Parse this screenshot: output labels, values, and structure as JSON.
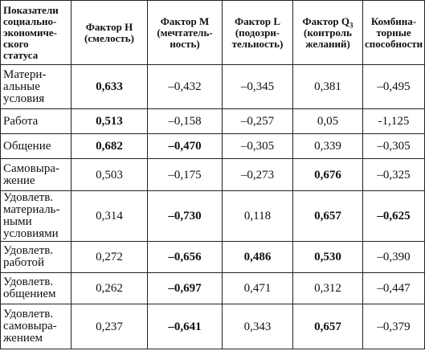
{
  "table": {
    "headers": [
      [
        "Показатели",
        "социально-",
        "экономиче-",
        "ского",
        "статуса"
      ],
      [
        "Фактор H",
        "(смелость)"
      ],
      [
        "Фактор M",
        "(мечтатель-",
        "ность)"
      ],
      [
        "Фактор L",
        "(подозри-",
        "тельность)"
      ],
      [
        "Фактор Q",
        "(контроль",
        "желаний)"
      ],
      [
        "Комбина-",
        "торные",
        "способности"
      ]
    ],
    "factor_q_subscript": "3",
    "rows": [
      {
        "label": [
          "Матери-",
          "альные",
          "условия"
        ],
        "cells": [
          "0,633",
          "–0,432",
          "–0,345",
          "0,381",
          "–0,495"
        ]
      },
      {
        "label": [
          "Работа"
        ],
        "cells": [
          "0,513",
          "–0,158",
          "–0,257",
          "0,05",
          "-1,125"
        ]
      },
      {
        "label": [
          "Общение"
        ],
        "cells": [
          "0,682",
          "–0,470",
          "–0,305",
          "0,339",
          "–0,305"
        ]
      },
      {
        "label": [
          "Самовыра-",
          "жение"
        ],
        "cells": [
          "0,503",
          "–0,175",
          "–0,273",
          "0,676",
          "–0,325"
        ]
      },
      {
        "label": [
          "Удовлетв.",
          "материаль-",
          "ными",
          "условиями"
        ],
        "cells": [
          "0,314",
          "–0,730",
          "0,118",
          "0,657",
          "–0,625"
        ]
      },
      {
        "label": [
          "Удовлетв.",
          "работой"
        ],
        "cells": [
          "0,272",
          "–0,656",
          "0,486",
          "0,530",
          "–0,390"
        ]
      },
      {
        "label": [
          "Удовлетв.",
          "общением"
        ],
        "cells": [
          "0,262",
          "–0,697",
          "0,471",
          "0,312",
          "–0,447"
        ]
      },
      {
        "label": [
          "Удовлетв.",
          "самовыра-",
          "жением"
        ],
        "cells": [
          "0,237",
          "–0,641",
          "0,343",
          "0,657",
          "–0,379"
        ]
      }
    ],
    "bold_cells": [
      [
        true,
        false,
        false,
        false,
        false
      ],
      [
        true,
        false,
        false,
        false,
        false
      ],
      [
        true,
        true,
        false,
        false,
        false
      ],
      [
        false,
        false,
        false,
        true,
        false
      ],
      [
        false,
        true,
        false,
        true,
        true
      ],
      [
        false,
        true,
        true,
        true,
        false
      ],
      [
        false,
        true,
        false,
        false,
        false
      ],
      [
        false,
        true,
        false,
        true,
        false
      ]
    ]
  }
}
